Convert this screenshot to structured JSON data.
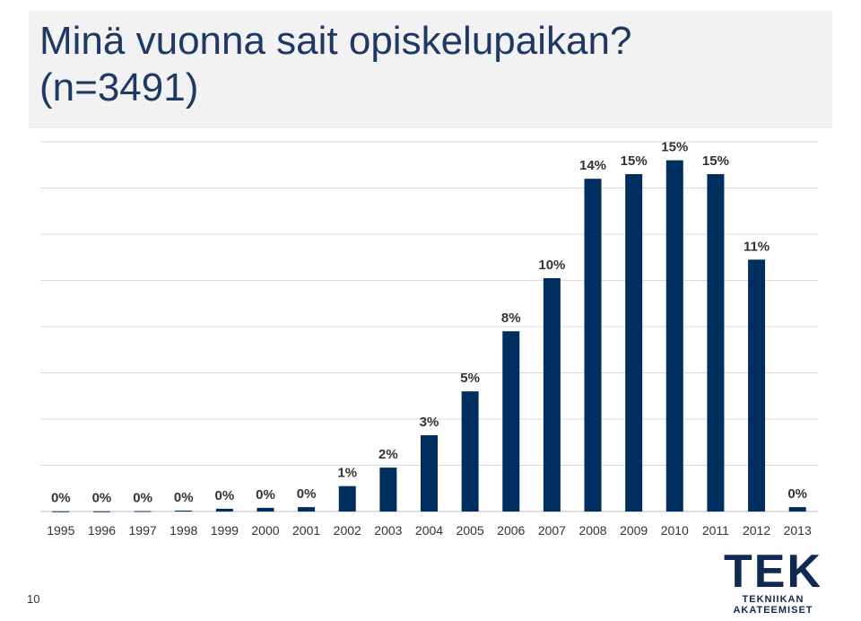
{
  "chart_data": {
    "type": "bar",
    "title": "Minä vuonna sait opiskelupaikan? (n=3491)",
    "categories": [
      "1995",
      "1996",
      "1997",
      "1998",
      "1999",
      "2000",
      "2001",
      "2002",
      "2003",
      "2004",
      "2005",
      "2006",
      "2007",
      "2008",
      "2009",
      "2010",
      "2011",
      "2012",
      "2013"
    ],
    "values": [
      0.01,
      0.01,
      0.02,
      0.04,
      0.12,
      0.16,
      0.19,
      1.1,
      1.9,
      3.3,
      5.2,
      7.8,
      10.1,
      14.4,
      14.6,
      15.2,
      14.6,
      10.9,
      0.19
    ],
    "value_labels": [
      "0%",
      "0%",
      "0%",
      "0%",
      "0%",
      "0%",
      "0%",
      "1%",
      "2%",
      "3%",
      "5%",
      "8%",
      "10%",
      "14%",
      "15%",
      "15%",
      "15%",
      "11%",
      "0%"
    ],
    "color": "#002f5f",
    "ylim": [
      0,
      16
    ],
    "gridlines": [
      0,
      2,
      4,
      6,
      8,
      10,
      12,
      14,
      16
    ],
    "grid": true
  },
  "page_number": "10",
  "logo": {
    "name": "TEK",
    "tagline": "TEKNIIKAN AKATEEMISET"
  }
}
